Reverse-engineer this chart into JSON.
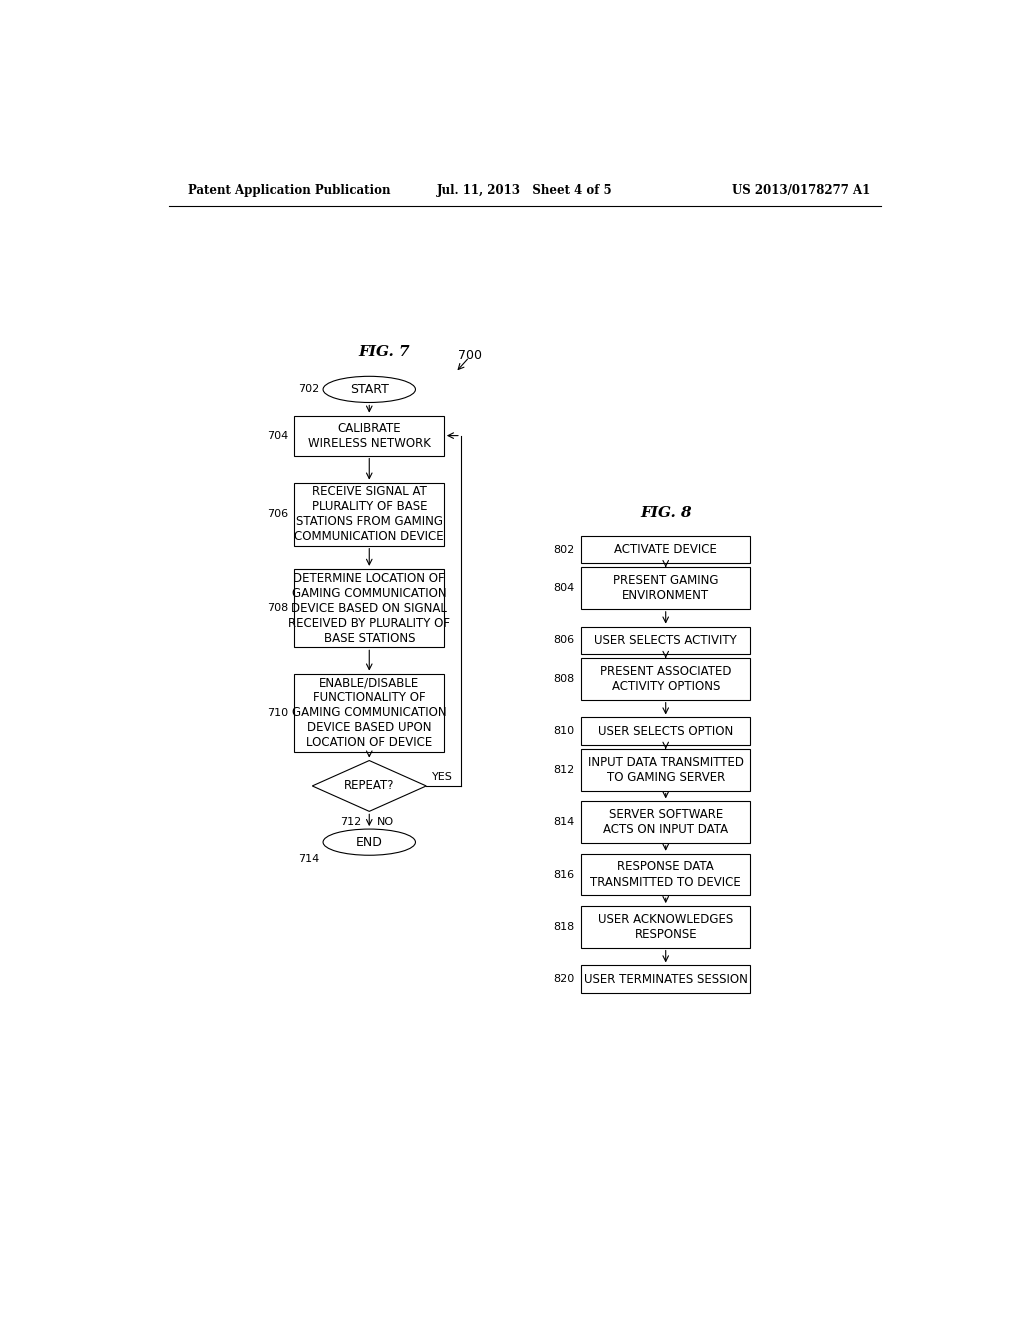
{
  "header_left": "Patent Application Publication",
  "header_mid": "Jul. 11, 2013   Sheet 4 of 5",
  "header_right": "US 2013/0178277 A1",
  "fig7_title": "FIG. 7",
  "fig7_ref": "700",
  "fig8_title": "FIG. 8",
  "fig7_nodes": [
    {
      "id": "702",
      "type": "oval",
      "label": "START",
      "num": "702"
    },
    {
      "id": "704",
      "type": "rect",
      "label": "CALIBRATE\nWIRELESS NETWORK",
      "num": "704"
    },
    {
      "id": "706",
      "type": "rect",
      "label": "RECEIVE SIGNAL AT\nPLURALITY OF BASE\nSTATIONS FROM GAMING\nCOMMUNICATION DEVICE",
      "num": "706"
    },
    {
      "id": "708",
      "type": "rect",
      "label": "DETERMINE LOCATION OF\nGAMING COMMUNICATION\nDEVICE BASED ON SIGNAL\nRECEIVED BY PLURALITY OF\nBASE STATIONS",
      "num": "708"
    },
    {
      "id": "710",
      "type": "rect",
      "label": "ENABLE/DISABLE\nFUNCTIONALITY OF\nGAMING COMMUNICATION\nDEVICE BASED UPON\nLOCATION OF DEVICE",
      "num": "710"
    },
    {
      "id": "rep",
      "type": "diamond",
      "label": "REPEAT?",
      "num": ""
    },
    {
      "id": "714",
      "type": "oval",
      "label": "END",
      "num": "714"
    }
  ],
  "fig8_nodes": [
    {
      "id": "802",
      "type": "rect",
      "label": "ACTIVATE DEVICE",
      "num": "802",
      "lines": 1
    },
    {
      "id": "804",
      "type": "rect",
      "label": "PRESENT GAMING\nENVIRONMENT",
      "num": "804",
      "lines": 2
    },
    {
      "id": "806",
      "type": "rect",
      "label": "USER SELECTS ACTIVITY",
      "num": "806",
      "lines": 1
    },
    {
      "id": "808",
      "type": "rect",
      "label": "PRESENT ASSOCIATED\nACTIVITY OPTIONS",
      "num": "808",
      "lines": 2
    },
    {
      "id": "810",
      "type": "rect",
      "label": "USER SELECTS OPTION",
      "num": "810",
      "lines": 1
    },
    {
      "id": "812",
      "type": "rect",
      "label": "INPUT DATA TRANSMITTED\nTO GAMING SERVER",
      "num": "812",
      "lines": 2
    },
    {
      "id": "814",
      "type": "rect",
      "label": "SERVER SOFTWARE\nACTS ON INPUT DATA",
      "num": "814",
      "lines": 2
    },
    {
      "id": "816",
      "type": "rect",
      "label": "RESPONSE DATA\nTRANSMITTED TO DEVICE",
      "num": "816",
      "lines": 2
    },
    {
      "id": "818",
      "type": "rect",
      "label": "USER ACKNOWLEDGES\nRESPONSE",
      "num": "818",
      "lines": 2
    },
    {
      "id": "820",
      "type": "rect",
      "label": "USER TERMINATES SESSION",
      "num": "820",
      "lines": 1
    }
  ],
  "bg_color": "#ffffff",
  "box_color": "#ffffff",
  "border_color": "#000000",
  "text_color": "#000000"
}
